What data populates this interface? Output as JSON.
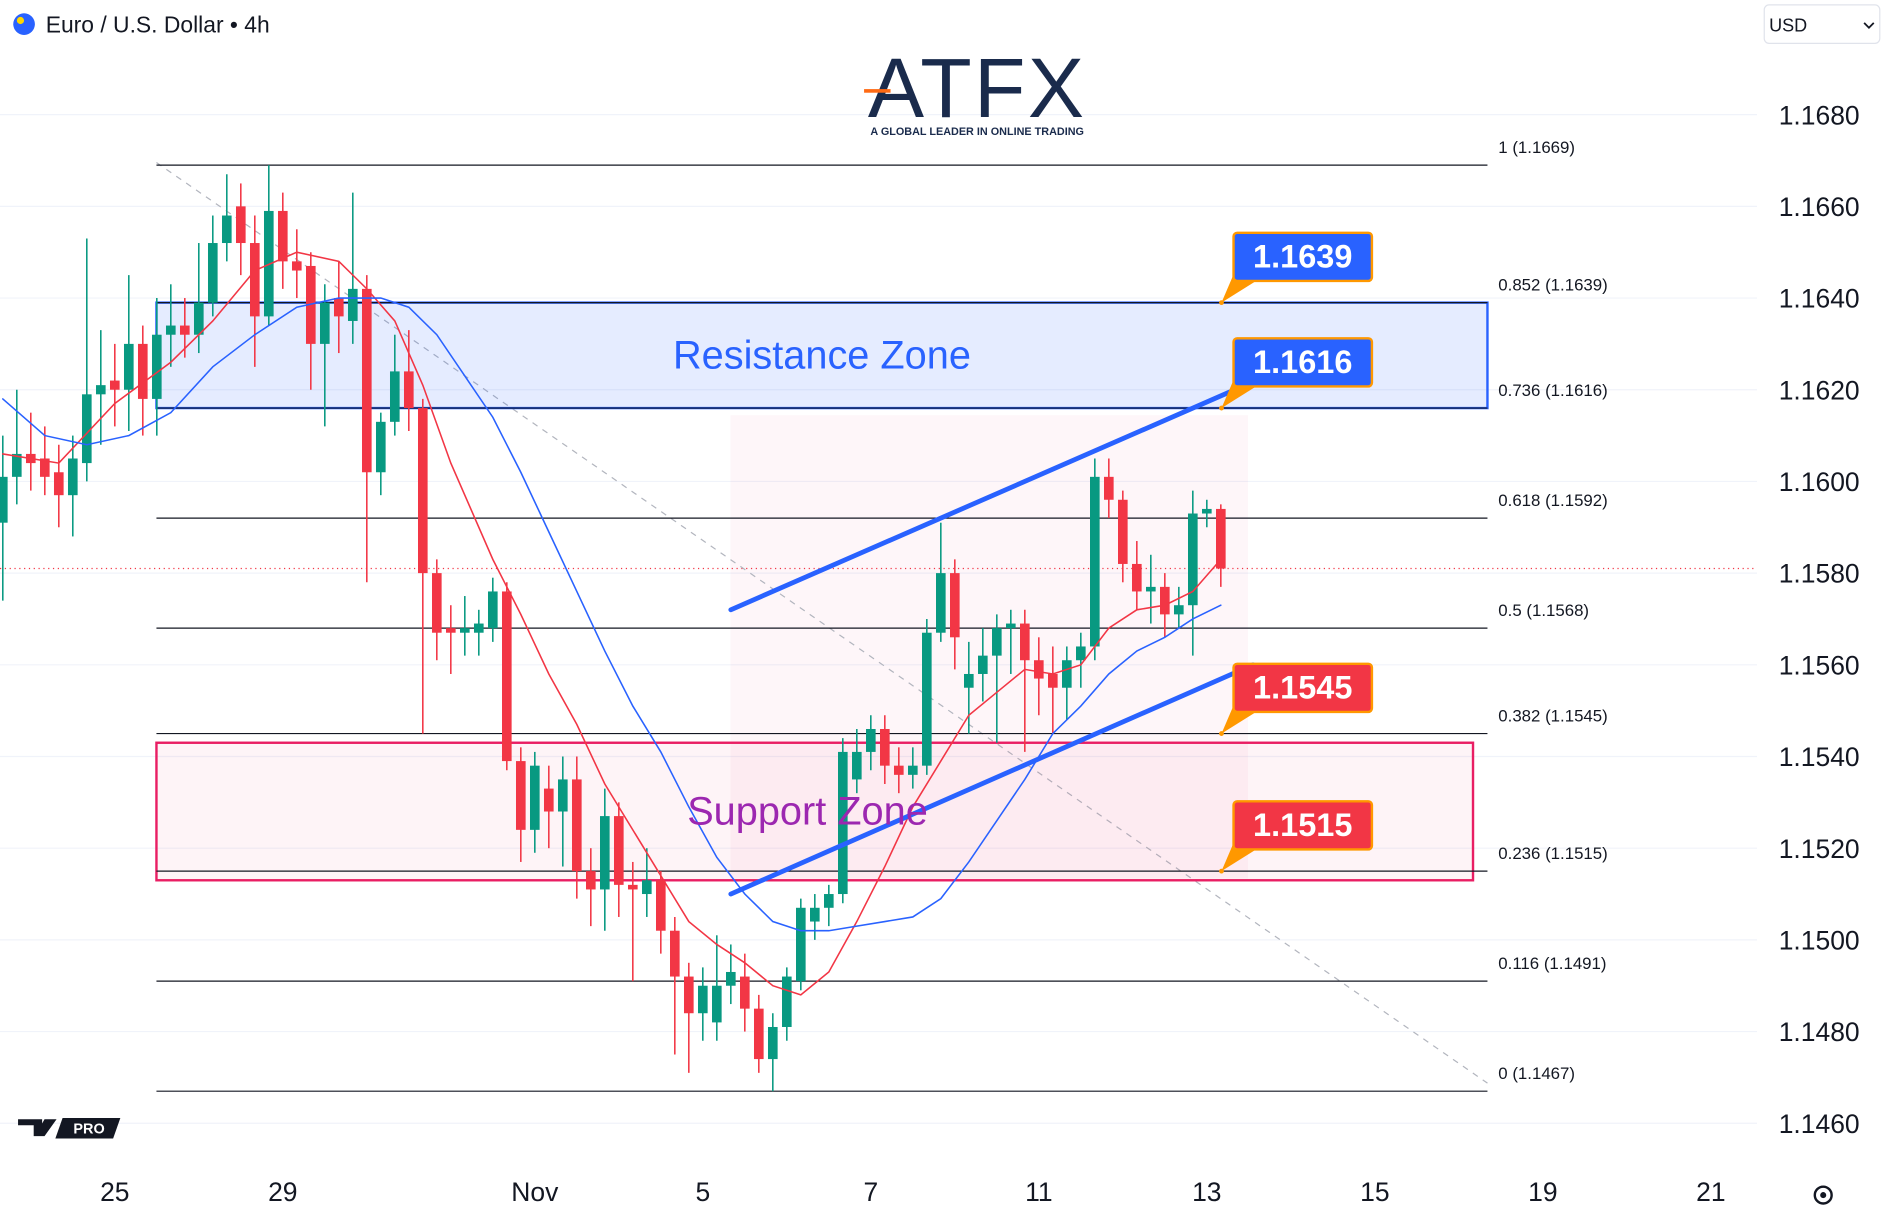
{
  "header": {
    "title": "Euro / U.S. Dollar • 4h",
    "currency": "USD"
  },
  "branding": {
    "logo": "ATFX",
    "tagline": "A GLOBAL LEADER IN ONLINE TRADING",
    "badge": "PRO"
  },
  "chart_data": {
    "type": "candlestick",
    "up_color": "#089981",
    "down_color": "#f23645",
    "open": [
      1.1591,
      1.1601,
      1.1606,
      1.1605,
      1.1602,
      1.1597,
      1.1604,
      1.1619,
      1.1622,
      1.162,
      1.163,
      1.1618,
      1.1632,
      1.1634,
      1.1632,
      1.1639,
      1.1652,
      1.166,
      1.1652,
      1.1636,
      1.1659,
      1.1648,
      1.1647,
      1.163,
      1.164,
      1.1635,
      1.1642,
      1.1602,
      1.1613,
      1.1624,
      1.1616,
      1.158,
      1.1568,
      1.1567,
      1.1567,
      1.1568,
      1.1576,
      1.1539,
      1.1524,
      1.1533,
      1.1528,
      1.1535,
      1.1515,
      1.1511,
      1.1527,
      1.1512,
      1.151,
      1.1513,
      1.1502,
      1.1492,
      1.1484,
      1.1482,
      1.149,
      1.1492,
      1.1485,
      1.1474,
      1.1481,
      1.1491,
      1.1504,
      1.1507,
      1.151,
      1.1535,
      1.1541,
      1.1546,
      1.1538,
      1.1536,
      1.1538,
      1.1567,
      1.158,
      1.1555,
      1.1558,
      1.1562,
      1.1568,
      1.1569,
      1.1561,
      1.1558,
      1.1555,
      1.1561,
      1.1564,
      1.1601,
      1.1596,
      1.1582,
      1.1576,
      1.1577,
      1.1571,
      1.1573,
      1.1593,
      1.1594
    ],
    "high": [
      1.161,
      1.162,
      1.1615,
      1.1612,
      1.1608,
      1.161,
      1.1653,
      1.1633,
      1.163,
      1.1645,
      1.1634,
      1.164,
      1.1643,
      1.164,
      1.1652,
      1.1658,
      1.1667,
      1.1665,
      1.1658,
      1.1669,
      1.1663,
      1.1655,
      1.165,
      1.1643,
      1.1648,
      1.1663,
      1.1645,
      1.1615,
      1.1632,
      1.1633,
      1.1618,
      1.1583,
      1.1573,
      1.1575,
      1.1572,
      1.1579,
      1.1578,
      1.1542,
      1.1541,
      1.1538,
      1.154,
      1.154,
      1.152,
      1.1533,
      1.153,
      1.1517,
      1.152,
      1.1515,
      1.1505,
      1.1495,
      1.1494,
      1.1501,
      1.1499,
      1.1497,
      1.1488,
      1.1484,
      1.1494,
      1.1509,
      1.151,
      1.1512,
      1.1544,
      1.1546,
      1.1549,
      1.1549,
      1.1542,
      1.1542,
      1.157,
      1.1591,
      1.1583,
      1.1565,
      1.1568,
      1.1571,
      1.1572,
      1.1572,
      1.1566,
      1.1564,
      1.1564,
      1.1567,
      1.1605,
      1.1605,
      1.1598,
      1.1587,
      1.1584,
      1.158,
      1.1577,
      1.1598,
      1.1596,
      1.1595
    ],
    "low": [
      1.1574,
      1.1595,
      1.1598,
      1.1597,
      1.159,
      1.1588,
      1.16,
      1.1608,
      1.1612,
      1.1611,
      1.161,
      1.161,
      1.1625,
      1.1627,
      1.1628,
      1.1636,
      1.1648,
      1.1645,
      1.1625,
      1.1634,
      1.1642,
      1.164,
      1.162,
      1.1612,
      1.1628,
      1.163,
      1.1578,
      1.1597,
      1.161,
      1.1611,
      1.1545,
      1.1561,
      1.1558,
      1.1562,
      1.1562,
      1.1565,
      1.1537,
      1.1517,
      1.1519,
      1.152,
      1.1516,
      1.1509,
      1.1503,
      1.1502,
      1.1505,
      1.1491,
      1.1505,
      1.1497,
      1.1475,
      1.1471,
      1.1478,
      1.1478,
      1.1486,
      1.148,
      1.1471,
      1.1467,
      1.1478,
      1.1489,
      1.15,
      1.1503,
      1.1508,
      1.1532,
      1.1537,
      1.1534,
      1.1532,
      1.1533,
      1.1536,
      1.1565,
      1.1559,
      1.1545,
      1.1552,
      1.1543,
      1.1558,
      1.1541,
      1.1549,
      1.1545,
      1.1548,
      1.1555,
      1.1561,
      1.1592,
      1.1578,
      1.1572,
      1.1569,
      1.1566,
      1.1568,
      1.1562,
      1.159,
      1.1577
    ],
    "close": [
      1.1601,
      1.1606,
      1.1604,
      1.1601,
      1.1597,
      1.1605,
      1.1619,
      1.1621,
      1.162,
      1.163,
      1.1618,
      1.1632,
      1.1634,
      1.1632,
      1.1639,
      1.1652,
      1.1658,
      1.1652,
      1.1636,
      1.1659,
      1.1648,
      1.1646,
      1.163,
      1.1639,
      1.1636,
      1.1642,
      1.1602,
      1.1613,
      1.1624,
      1.1616,
      1.158,
      1.1567,
      1.1567,
      1.1568,
      1.1569,
      1.1576,
      1.1539,
      1.1524,
      1.1538,
      1.1528,
      1.1535,
      1.1515,
      1.1511,
      1.1527,
      1.1512,
      1.1511,
      1.1513,
      1.1502,
      1.1492,
      1.1484,
      1.149,
      1.149,
      1.1493,
      1.1485,
      1.1474,
      1.1481,
      1.1492,
      1.1507,
      1.1507,
      1.151,
      1.1541,
      1.1541,
      1.1546,
      1.1538,
      1.1536,
      1.1538,
      1.1567,
      1.158,
      1.1566,
      1.1558,
      1.1562,
      1.1568,
      1.1569,
      1.1561,
      1.1557,
      1.1555,
      1.1561,
      1.1564,
      1.1601,
      1.1596,
      1.1582,
      1.1576,
      1.1577,
      1.1571,
      1.1573,
      1.1593,
      1.1594,
      1.1581
    ],
    "lines": [
      {
        "color": "#f23645",
        "x": [
          0,
          4,
          8,
          12,
          15,
          18,
          21,
          24,
          26,
          28,
          30,
          32,
          35,
          37,
          39,
          41,
          43,
          45,
          47,
          49,
          51,
          53,
          55,
          57,
          59,
          61,
          63,
          65,
          67,
          69,
          71,
          73,
          75,
          77,
          79,
          81,
          83,
          85,
          87
        ],
        "values": [
          1.1606,
          1.1604,
          1.1617,
          1.1626,
          1.1635,
          1.1646,
          1.165,
          1.1648,
          1.1642,
          1.1635,
          1.1621,
          1.1604,
          1.1583,
          1.1571,
          1.1558,
          1.1547,
          1.1534,
          1.1524,
          1.1514,
          1.1504,
          1.1499,
          1.1495,
          1.149,
          1.1488,
          1.1493,
          1.1504,
          1.1516,
          1.1529,
          1.1539,
          1.1549,
          1.1554,
          1.1559,
          1.1558,
          1.156,
          1.1568,
          1.1572,
          1.1573,
          1.1576,
          1.1583
        ]
      },
      {
        "color": "#2962ff",
        "x": [
          0,
          3,
          6,
          9,
          12,
          15,
          18,
          21,
          24,
          27,
          29,
          31,
          33,
          35,
          37,
          39,
          41,
          43,
          45,
          47,
          49,
          51,
          53,
          55,
          57,
          59,
          61,
          63,
          65,
          67,
          69,
          71,
          73,
          75,
          77,
          79,
          81,
          83,
          85,
          87
        ],
        "values": [
          1.1618,
          1.161,
          1.1608,
          1.161,
          1.1615,
          1.1625,
          1.1632,
          1.1638,
          1.164,
          1.164,
          1.1638,
          1.1632,
          1.1623,
          1.1614,
          1.1602,
          1.1589,
          1.1576,
          1.1563,
          1.1551,
          1.1541,
          1.1529,
          1.1518,
          1.151,
          1.1504,
          1.1502,
          1.1502,
          1.1503,
          1.1504,
          1.1505,
          1.1509,
          1.1517,
          1.1526,
          1.1535,
          1.1545,
          1.1551,
          1.1558,
          1.1563,
          1.1566,
          1.157,
          1.1573
        ]
      }
    ],
    "trend_lines": [
      {
        "color": "#2962ff",
        "x": [
          52,
          88
        ],
        "values": [
          1.1572,
          1.162
        ]
      },
      {
        "color": "#2962ff",
        "x": [
          52,
          89.3
        ],
        "values": [
          1.151,
          1.156
        ]
      }
    ],
    "fib_levels": [
      {
        "value": 1.1669,
        "label": "1 (1.1669)"
      },
      {
        "value": 1.1639,
        "label": "0.852 (1.1639)"
      },
      {
        "value": 1.1616,
        "label": "0.736 (1.1616)"
      },
      {
        "value": 1.1592,
        "label": "0.618 (1.1592)"
      },
      {
        "value": 1.1568,
        "label": "0.5 (1.1568)"
      },
      {
        "value": 1.1545,
        "label": "0.382 (1.1545)"
      },
      {
        "value": 1.1515,
        "label": "0.236 (1.1515)"
      },
      {
        "value": 1.1491,
        "label": "0.116 (1.1491)"
      },
      {
        "value": 1.1467,
        "label": "0 (1.1467)"
      }
    ],
    "zones": [
      {
        "label": "Resistance Zone",
        "from": 1.1616,
        "to": 1.1639,
        "color": "#2962ff",
        "text_color": "#2962ff"
      },
      {
        "label": "Support Zone",
        "from": 1.1513,
        "to": 1.1543,
        "color": "#e91e63",
        "text_color": "#9c27b0"
      }
    ],
    "callouts": [
      {
        "value": 1.1639,
        "color": "#2962ff"
      },
      {
        "value": 1.1616,
        "color": "#2962ff"
      },
      {
        "value": 1.1545,
        "color": "#f23645"
      },
      {
        "value": 1.1515,
        "color": "#f23645"
      }
    ],
    "ylim": [
      1.1453,
      1.1705
    ],
    "yticks": [
      {
        "value": 1.146,
        "label": "1.1460"
      },
      {
        "value": 1.148,
        "label": "1.1480"
      },
      {
        "value": 1.15,
        "label": "1.1500"
      },
      {
        "value": 1.152,
        "label": "1.1520"
      },
      {
        "value": 1.154,
        "label": "1.1540"
      },
      {
        "value": 1.156,
        "label": "1.1560"
      },
      {
        "value": 1.158,
        "label": "1.1580"
      },
      {
        "value": 1.16,
        "label": "1.1600"
      },
      {
        "value": 1.162,
        "label": "1.1620"
      },
      {
        "value": 1.164,
        "label": "1.1640"
      },
      {
        "value": 1.166,
        "label": "1.1660"
      },
      {
        "value": 1.168,
        "label": "1.1680"
      }
    ],
    "xlim": [
      -0.2,
      125.3
    ],
    "xticks": [
      {
        "value": 8,
        "label": "25"
      },
      {
        "value": 20,
        "label": "29"
      },
      {
        "value": 38,
        "label": "Nov"
      },
      {
        "value": 50,
        "label": "5"
      },
      {
        "value": 62,
        "label": "7"
      },
      {
        "value": 74,
        "label": "11"
      },
      {
        "value": 86,
        "label": "13"
      },
      {
        "value": 98,
        "label": "15"
      },
      {
        "value": 110,
        "label": "19"
      },
      {
        "value": 122,
        "label": "21"
      }
    ],
    "grid": true
  }
}
